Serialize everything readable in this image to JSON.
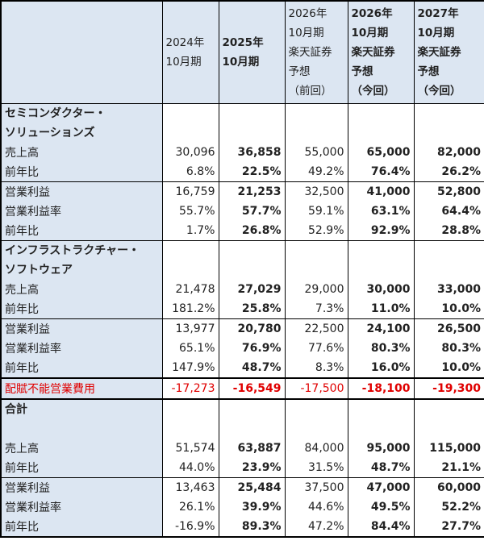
{
  "table": {
    "columns": [
      "2024年\n10月期",
      "2025年\n10月期",
      "2026年\n10月期\n楽天証券\n予想\n（前回）",
      "2026年\n10月期\n楽天証券\n予想\n（今回）",
      "2027年\n10月期\n楽天証券\n予想\n（今回）"
    ],
    "groups": [
      {
        "title": "セミコンダクター・\nソリューションズ",
        "rows": [
          {
            "label": "売上高",
            "values": [
              "30,096",
              "36,858",
              "55,000",
              "65,000",
              "82,000"
            ]
          },
          {
            "label": "前年比",
            "values": [
              "6.8%",
              "22.5%",
              "49.2%",
              "76.4%",
              "26.2%"
            ]
          },
          {
            "label": "営業利益",
            "values": [
              "16,759",
              "21,253",
              "32,500",
              "41,000",
              "52,800"
            ]
          },
          {
            "label": "営業利益率",
            "values": [
              "55.7%",
              "57.7%",
              "59.1%",
              "63.1%",
              "64.4%"
            ]
          },
          {
            "label": "前年比",
            "values": [
              "1.7%",
              "26.8%",
              "52.9%",
              "92.9%",
              "28.8%"
            ]
          }
        ]
      },
      {
        "title": "インフラストラクチャー・\nソフトウェア",
        "rows": [
          {
            "label": "売上高",
            "values": [
              "21,478",
              "27,029",
              "29,000",
              "30,000",
              "33,000"
            ]
          },
          {
            "label": "前年比",
            "values": [
              "181.2%",
              "25.8%",
              "7.3%",
              "11.0%",
              "10.0%"
            ]
          },
          {
            "label": "営業利益",
            "values": [
              "13,977",
              "20,780",
              "22,500",
              "24,100",
              "26,500"
            ]
          },
          {
            "label": "営業利益率",
            "values": [
              "65.1%",
              "76.9%",
              "77.6%",
              "80.3%",
              "80.3%"
            ]
          },
          {
            "label": "前年比",
            "values": [
              "147.9%",
              "48.7%",
              "8.3%",
              "16.0%",
              "10.0%"
            ]
          }
        ]
      },
      {
        "rows": [
          {
            "label": "配賦不能営業費用",
            "values": [
              "-17,273",
              "-16,549",
              "-17,500",
              "-18,100",
              "-19,300"
            ]
          }
        ]
      },
      {
        "title": "合計",
        "rows": [
          {
            "label": "売上高",
            "values": [
              "51,574",
              "63,887",
              "84,000",
              "95,000",
              "115,000"
            ]
          },
          {
            "label": "前年比",
            "values": [
              "44.0%",
              "23.9%",
              "31.5%",
              "48.7%",
              "21.1%"
            ]
          },
          {
            "label": "営業利益",
            "values": [
              "13,463",
              "25,484",
              "37,500",
              "47,000",
              "60,000"
            ]
          },
          {
            "label": "営業利益率",
            "values": [
              "26.1%",
              "39.9%",
              "44.6%",
              "49.5%",
              "52.2%"
            ]
          },
          {
            "label": "前年比",
            "values": [
              "-16.9%",
              "89.3%",
              "47.2%",
              "84.4%",
              "27.7%"
            ]
          }
        ]
      }
    ]
  }
}
